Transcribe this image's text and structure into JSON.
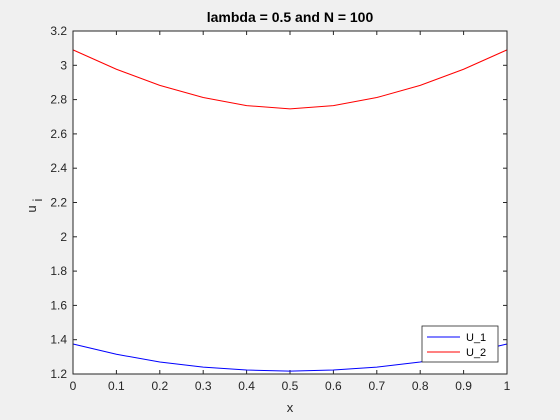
{
  "chart_data": {
    "type": "line",
    "title": "lambda = 0.5 and N = 100",
    "xlabel": "x",
    "ylabel_main": "u",
    "ylabel_sub": "i",
    "xlim": [
      0,
      1
    ],
    "ylim": [
      1.2,
      3.2
    ],
    "xticks": [
      0,
      0.1,
      0.2,
      0.3,
      0.4,
      0.5,
      0.6,
      0.7,
      0.8,
      0.9,
      1
    ],
    "xtick_labels": [
      "0",
      "0.1",
      "0.2",
      "0.3",
      "0.4",
      "0.5",
      "0.6",
      "0.7",
      "0.8",
      "0.9",
      "1"
    ],
    "yticks": [
      1.2,
      1.4,
      1.6,
      1.8,
      2,
      2.2,
      2.4,
      2.6,
      2.8,
      3,
      3.2
    ],
    "ytick_labels": [
      "1.2",
      "1.4",
      "1.6",
      "1.8",
      "2",
      "2.2",
      "2.4",
      "2.6",
      "2.8",
      "3",
      "3.2"
    ],
    "grid": false,
    "legend_position": "bottom-right",
    "x": [
      0,
      0.1,
      0.2,
      0.3,
      0.4,
      0.5,
      0.6,
      0.7,
      0.8,
      0.9,
      1
    ],
    "series": [
      {
        "name": "U_1",
        "color": "#0000ff",
        "values": [
          1.375,
          1.315,
          1.27,
          1.24,
          1.223,
          1.217,
          1.223,
          1.24,
          1.27,
          1.315,
          1.375
        ]
      },
      {
        "name": "U_2",
        "color": "#ff0000",
        "values": [
          3.09,
          2.977,
          2.883,
          2.812,
          2.765,
          2.746,
          2.765,
          2.812,
          2.883,
          2.977,
          3.09
        ]
      }
    ]
  }
}
